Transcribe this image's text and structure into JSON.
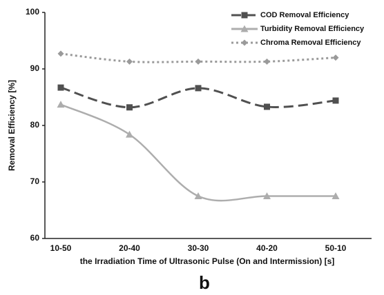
{
  "chart_data": {
    "type": "line",
    "x_label": "the Irradiation  Time of Ultrasonic Pulse (On and Intermission) [s]",
    "y_label": "Removal Efficiency [%]",
    "annotations": [
      "b"
    ],
    "categories": [
      "10-50",
      "20-40",
      "30-30",
      "40-20",
      "50-10"
    ],
    "series": [
      {
        "name": "COD Removal Efficiency",
        "color": "#505050",
        "marker": "square",
        "dash": "dashed",
        "values": [
          86.7,
          83.2,
          86.6,
          83.3,
          84.4
        ]
      },
      {
        "name": "Turbidity Removal Efficiency",
        "color": "#adadad",
        "marker": "triangle",
        "dash": "solid",
        "values": [
          83.7,
          78.4,
          67.5,
          67.5,
          67.5
        ]
      },
      {
        "name": "Chroma Removal Efficiency",
        "color": "#9a9a9a",
        "marker": "diamond",
        "dash": "dotted",
        "values": [
          92.7,
          91.3,
          91.3,
          91.3,
          92.0
        ]
      }
    ],
    "ylim": [
      60,
      100
    ],
    "yticks": [
      60,
      70,
      80,
      90,
      100
    ],
    "grid": false,
    "legend": "top-right",
    "smooth": true
  }
}
